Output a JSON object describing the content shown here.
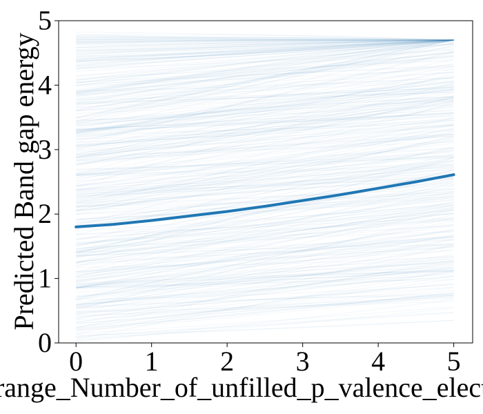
{
  "chart_data": {
    "type": "line",
    "title": "",
    "xlabel": "range_Number_of_unfilled_p_valence_electrons",
    "ylabel": "Predicted Band gap energy",
    "xlim": [
      -0.23,
      5.25
    ],
    "ylim": [
      0,
      5
    ],
    "x_ticks": [
      "0",
      "1",
      "2",
      "3",
      "4",
      "5"
    ],
    "y_ticks": [
      "0",
      "1",
      "2",
      "3",
      "4",
      "5"
    ],
    "grid": false,
    "series": [
      {
        "kind": "mean",
        "color": "#1f77b4",
        "x": [
          0,
          0.5,
          1,
          1.5,
          2,
          2.5,
          3,
          3.5,
          4,
          4.5,
          5
        ],
        "values": [
          1.8,
          1.84,
          1.9,
          1.97,
          2.04,
          2.12,
          2.21,
          2.3,
          2.4,
          2.5,
          2.61
        ]
      }
    ],
    "background_lines": {
      "description": "many faint individual conditional-expectation lines",
      "color": "#1f77b4",
      "opacity": 0.05,
      "count": 400,
      "start_range": [
        0.02,
        4.85
      ],
      "end_range": [
        0.35,
        4.7
      ]
    }
  }
}
